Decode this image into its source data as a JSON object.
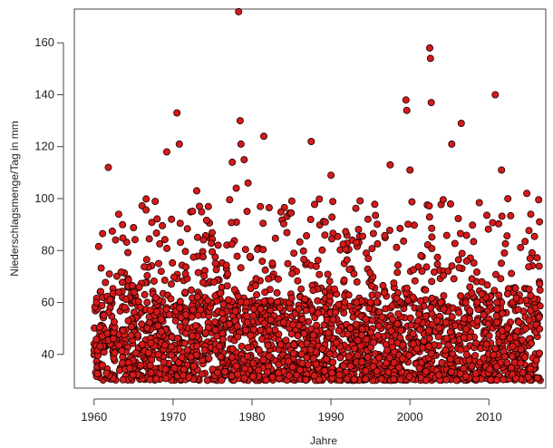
{
  "chart_data": {
    "type": "scatter",
    "title": "",
    "xlabel": "Jahre",
    "ylabel": "Niederschlagsmenge/Tag in mm",
    "xlim": [
      1960,
      2016.5
    ],
    "ylim": [
      30,
      168
    ],
    "x_ticks": [
      1960,
      1970,
      1980,
      1990,
      2000,
      2010
    ],
    "y_ticks": [
      40,
      60,
      80,
      100,
      120,
      140,
      160
    ],
    "grid": false,
    "legend": "none",
    "colors": {
      "fill": "#d41a1a",
      "stroke": "#1a0000"
    },
    "notable_points": [
      {
        "x": 1961.8,
        "y": 112
      },
      {
        "x": 1969.2,
        "y": 118
      },
      {
        "x": 1970.5,
        "y": 133
      },
      {
        "x": 1970.8,
        "y": 121
      },
      {
        "x": 1973.0,
        "y": 103
      },
      {
        "x": 1977.5,
        "y": 114
      },
      {
        "x": 1978.3,
        "y": 172
      },
      {
        "x": 1978.5,
        "y": 130
      },
      {
        "x": 1978.6,
        "y": 121
      },
      {
        "x": 1979.0,
        "y": 115
      },
      {
        "x": 1979.5,
        "y": 106
      },
      {
        "x": 1978.0,
        "y": 104
      },
      {
        "x": 1981.5,
        "y": 124
      },
      {
        "x": 1987.5,
        "y": 122
      },
      {
        "x": 1990.0,
        "y": 109
      },
      {
        "x": 1997.5,
        "y": 113
      },
      {
        "x": 1999.5,
        "y": 138
      },
      {
        "x": 1999.6,
        "y": 134
      },
      {
        "x": 2000.0,
        "y": 111
      },
      {
        "x": 2002.5,
        "y": 158
      },
      {
        "x": 2002.6,
        "y": 154
      },
      {
        "x": 2002.7,
        "y": 137
      },
      {
        "x": 2005.3,
        "y": 121
      },
      {
        "x": 2006.5,
        "y": 129
      },
      {
        "x": 2010.8,
        "y": 140
      },
      {
        "x": 2011.6,
        "y": 111
      },
      {
        "x": 2014.8,
        "y": 102
      },
      {
        "x": 2015.3,
        "y": 94
      }
    ],
    "bulk_band": {
      "x_range": [
        1960,
        2016.5
      ],
      "y_range": [
        30,
        60
      ],
      "approx_count": 2000
    },
    "upper_band": {
      "x_range": [
        1960,
        2016.5
      ],
      "y_range": [
        60,
        100
      ],
      "approx_count": 520
    }
  }
}
